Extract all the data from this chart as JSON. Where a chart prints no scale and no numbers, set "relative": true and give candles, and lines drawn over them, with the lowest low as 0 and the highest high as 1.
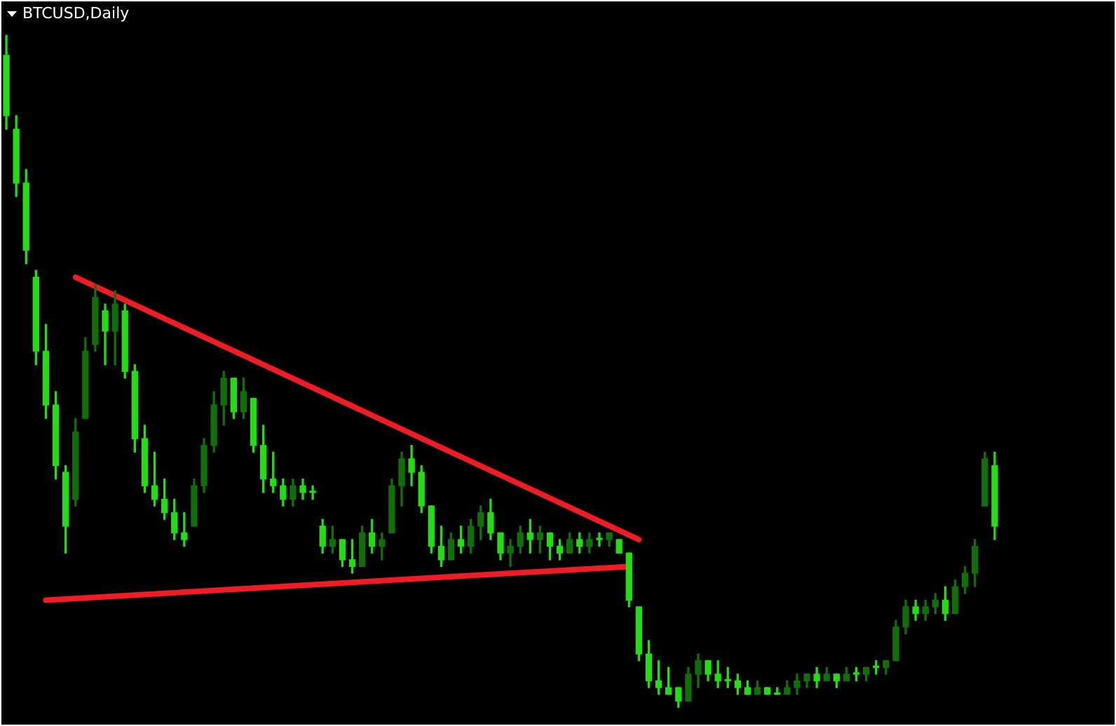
{
  "chart_data": {
    "type": "candlestick",
    "title": "BTCUSD,Daily",
    "relative": true,
    "colors": [
      "#22dd11",
      "#22dd11",
      "#22dd11",
      "#22dd11",
      "#22dd11",
      "#22dd11",
      "#22dd11",
      "#116f09",
      "#116f09",
      "#116f09",
      "#22dd11",
      "#116f09",
      "#22dd11",
      "#22dd11",
      "#22dd11",
      "#22dd11",
      "#22dd11",
      "#22dd11",
      "#22dd11",
      "#116f09",
      "#116f09",
      "#116f09",
      "#116f09",
      "#22dd11",
      "#116f09",
      "#22dd11",
      "#22dd11",
      "#22dd11",
      "#22dd11",
      "#116f09",
      "#22dd11",
      "#22dd11",
      "#22dd11",
      "#116f09",
      "#22dd11",
      "#22dd11",
      "#116f09",
      "#22dd11",
      "#116f09",
      "#116f09",
      "#116f09",
      "#22dd11",
      "#22dd11",
      "#22dd11",
      "#22dd11",
      "#116f09",
      "#22dd11",
      "#116f09",
      "#116f09",
      "#22dd11",
      "#22dd11",
      "#116f09",
      "#116f09",
      "#22dd11",
      "#116f09",
      "#22dd11",
      "#22dd11",
      "#116f09",
      "#22dd11",
      "#116f09",
      "#22dd11",
      "#116f09",
      "#22dd11",
      "#22dd11",
      "#22dd11",
      "#22dd11",
      "#22dd11",
      "#22dd11",
      "#22dd11",
      "#116f09",
      "#116f09",
      "#22dd11",
      "#22dd11",
      "#22dd11",
      "#22dd11",
      "#22dd11",
      "#116f09",
      "#22dd11",
      "#22dd11",
      "#116f09",
      "#116f09",
      "#116f09",
      "#22dd11",
      "#116f09",
      "#22dd11",
      "#116f09",
      "#22dd11",
      "#116f09",
      "#22dd11",
      "#116f09",
      "#116f09",
      "#116f09",
      "#22dd11",
      "#116f09",
      "#116f09",
      "#22dd11",
      "#116f09",
      "#116f09",
      "#116f09",
      "#116f09",
      "#22dd11"
    ],
    "legend": false,
    "tick_labels": false,
    "categories": [
      null,
      null,
      null,
      null,
      null,
      null,
      null,
      null,
      null,
      null,
      null,
      null,
      null,
      null,
      null,
      null,
      null,
      null,
      null,
      null,
      null,
      null,
      null,
      null,
      null,
      null,
      null,
      null,
      null,
      null,
      null,
      null,
      null,
      null,
      null,
      null,
      null,
      null,
      null,
      null,
      null,
      null,
      null,
      null,
      null,
      null,
      null,
      null,
      null,
      null,
      null,
      null,
      null,
      null,
      null,
      null,
      null,
      null,
      null,
      null,
      null,
      null,
      null,
      null,
      null,
      null,
      null,
      null,
      null,
      null,
      null,
      null,
      null,
      null,
      null,
      null,
      null,
      null,
      null,
      null,
      null,
      null,
      null,
      null,
      null,
      null,
      null,
      null,
      null,
      null,
      null,
      null,
      null,
      null,
      null,
      null,
      null,
      null,
      null,
      null,
      null
    ],
    "ohlc": [
      [
        0.97,
        1.0,
        0.86,
        0.88
      ],
      [
        0.86,
        0.88,
        0.76,
        0.78
      ],
      [
        0.78,
        0.8,
        0.66,
        0.68
      ],
      [
        0.64,
        0.65,
        0.51,
        0.53
      ],
      [
        0.53,
        0.57,
        0.43,
        0.45
      ],
      [
        0.45,
        0.47,
        0.34,
        0.36
      ],
      [
        0.35,
        0.36,
        0.23,
        0.27
      ],
      [
        0.31,
        0.43,
        0.3,
        0.41
      ],
      [
        0.43,
        0.55,
        0.43,
        0.53
      ],
      [
        0.54,
        0.63,
        0.53,
        0.61
      ],
      [
        0.59,
        0.6,
        0.51,
        0.56
      ],
      [
        0.56,
        0.62,
        0.51,
        0.6
      ],
      [
        0.59,
        0.6,
        0.49,
        0.5
      ],
      [
        0.5,
        0.51,
        0.38,
        0.4
      ],
      [
        0.4,
        0.42,
        0.32,
        0.33
      ],
      [
        0.33,
        0.38,
        0.3,
        0.31
      ],
      [
        0.31,
        0.34,
        0.28,
        0.29
      ],
      [
        0.29,
        0.31,
        0.25,
        0.26
      ],
      [
        0.26,
        0.29,
        0.24,
        0.25
      ],
      [
        0.27,
        0.34,
        0.27,
        0.33
      ],
      [
        0.33,
        0.4,
        0.32,
        0.39
      ],
      [
        0.39,
        0.47,
        0.38,
        0.45
      ],
      [
        0.45,
        0.5,
        0.42,
        0.49
      ],
      [
        0.49,
        0.49,
        0.43,
        0.44
      ],
      [
        0.44,
        0.49,
        0.43,
        0.47
      ],
      [
        0.46,
        0.46,
        0.38,
        0.39
      ],
      [
        0.39,
        0.42,
        0.32,
        0.34
      ],
      [
        0.34,
        0.38,
        0.32,
        0.33
      ],
      [
        0.33,
        0.34,
        0.3,
        0.31
      ],
      [
        0.31,
        0.34,
        0.3,
        0.33
      ],
      [
        0.33,
        0.34,
        0.31,
        0.32
      ],
      [
        0.32,
        0.33,
        0.31,
        0.32
      ],
      [
        0.27,
        0.28,
        0.23,
        0.24
      ],
      [
        0.24,
        0.27,
        0.23,
        0.25
      ],
      [
        0.25,
        0.25,
        0.21,
        0.22
      ],
      [
        0.22,
        0.25,
        0.2,
        0.21
      ],
      [
        0.21,
        0.27,
        0.21,
        0.26
      ],
      [
        0.26,
        0.28,
        0.23,
        0.24
      ],
      [
        0.24,
        0.26,
        0.22,
        0.25
      ],
      [
        0.26,
        0.34,
        0.26,
        0.33
      ],
      [
        0.33,
        0.38,
        0.3,
        0.37
      ],
      [
        0.37,
        0.39,
        0.33,
        0.35
      ],
      [
        0.35,
        0.36,
        0.29,
        0.3
      ],
      [
        0.3,
        0.3,
        0.23,
        0.24
      ],
      [
        0.24,
        0.27,
        0.21,
        0.22
      ],
      [
        0.22,
        0.26,
        0.22,
        0.25
      ],
      [
        0.25,
        0.27,
        0.23,
        0.24
      ],
      [
        0.24,
        0.28,
        0.23,
        0.27
      ],
      [
        0.27,
        0.3,
        0.25,
        0.29
      ],
      [
        0.29,
        0.31,
        0.25,
        0.26
      ],
      [
        0.26,
        0.26,
        0.22,
        0.23
      ],
      [
        0.23,
        0.25,
        0.21,
        0.24
      ],
      [
        0.24,
        0.27,
        0.23,
        0.26
      ],
      [
        0.26,
        0.28,
        0.23,
        0.25
      ],
      [
        0.25,
        0.27,
        0.23,
        0.26
      ],
      [
        0.26,
        0.26,
        0.22,
        0.24
      ],
      [
        0.24,
        0.25,
        0.22,
        0.23
      ],
      [
        0.23,
        0.26,
        0.23,
        0.25
      ],
      [
        0.25,
        0.26,
        0.23,
        0.24
      ],
      [
        0.24,
        0.26,
        0.23,
        0.25
      ],
      [
        0.25,
        0.26,
        0.24,
        0.25
      ],
      [
        0.25,
        0.26,
        0.24,
        0.26
      ],
      [
        0.25,
        0.25,
        0.23,
        0.23
      ],
      [
        0.23,
        0.23,
        0.15,
        0.16
      ],
      [
        0.15,
        0.15,
        0.07,
        0.08
      ],
      [
        0.08,
        0.1,
        0.03,
        0.04
      ],
      [
        0.04,
        0.07,
        0.02,
        0.03
      ],
      [
        0.03,
        0.06,
        0.02,
        0.02
      ],
      [
        0.03,
        0.03,
        0.0,
        0.01
      ],
      [
        0.01,
        0.06,
        0.01,
        0.05
      ],
      [
        0.05,
        0.08,
        0.03,
        0.07
      ],
      [
        0.07,
        0.07,
        0.04,
        0.05
      ],
      [
        0.05,
        0.07,
        0.03,
        0.04
      ],
      [
        0.04,
        0.06,
        0.03,
        0.04
      ],
      [
        0.04,
        0.05,
        0.02,
        0.03
      ],
      [
        0.03,
        0.04,
        0.02,
        0.02
      ],
      [
        0.02,
        0.04,
        0.02,
        0.03
      ],
      [
        0.03,
        0.03,
        0.02,
        0.02
      ],
      [
        0.02,
        0.03,
        0.02,
        0.02
      ],
      [
        0.02,
        0.04,
        0.02,
        0.03
      ],
      [
        0.03,
        0.05,
        0.02,
        0.04
      ],
      [
        0.04,
        0.05,
        0.03,
        0.05
      ],
      [
        0.05,
        0.06,
        0.03,
        0.04
      ],
      [
        0.04,
        0.06,
        0.04,
        0.05
      ],
      [
        0.05,
        0.05,
        0.03,
        0.04
      ],
      [
        0.04,
        0.06,
        0.04,
        0.05
      ],
      [
        0.05,
        0.06,
        0.04,
        0.05
      ],
      [
        0.05,
        0.06,
        0.04,
        0.06
      ],
      [
        0.06,
        0.07,
        0.05,
        0.06
      ],
      [
        0.06,
        0.07,
        0.05,
        0.07
      ],
      [
        0.07,
        0.13,
        0.07,
        0.12
      ],
      [
        0.12,
        0.16,
        0.11,
        0.15
      ],
      [
        0.15,
        0.16,
        0.13,
        0.14
      ],
      [
        0.14,
        0.16,
        0.13,
        0.15
      ],
      [
        0.15,
        0.17,
        0.14,
        0.16
      ],
      [
        0.16,
        0.18,
        0.13,
        0.14
      ],
      [
        0.14,
        0.19,
        0.14,
        0.18
      ],
      [
        0.18,
        0.21,
        0.17,
        0.2
      ],
      [
        0.2,
        0.25,
        0.18,
        0.24
      ],
      [
        0.3,
        0.38,
        0.3,
        0.37
      ],
      [
        0.36,
        0.38,
        0.25,
        0.27
      ]
    ],
    "series": [
      {
        "type": "line",
        "color": "#ee1c24",
        "values": [
          null,
          null,
          null,
          null,
          null,
          null,
          null,
          0.64,
          null,
          null,
          null,
          null,
          null,
          null,
          null,
          null,
          null,
          null,
          null,
          null,
          null,
          null,
          null,
          null,
          null,
          null,
          null,
          null,
          null,
          null,
          null,
          null,
          null,
          null,
          null,
          null,
          null,
          null,
          null,
          null,
          null,
          null,
          null,
          null,
          null,
          null,
          null,
          null,
          null,
          null,
          null,
          null,
          null,
          null,
          null,
          null,
          null,
          null,
          null,
          null,
          null,
          null,
          null,
          null,
          0.25,
          null,
          null,
          null,
          null,
          null,
          null,
          null,
          null,
          null,
          null,
          null,
          null,
          null,
          null,
          null,
          null,
          null,
          null,
          null,
          null,
          null,
          null,
          null,
          null,
          null,
          null,
          null,
          null,
          null,
          null,
          null,
          null,
          null,
          null,
          null,
          null
        ]
      },
      {
        "type": "line",
        "color": "#ee1c24",
        "values": [
          null,
          null,
          null,
          null,
          0.16,
          null,
          null,
          null,
          null,
          null,
          null,
          null,
          null,
          null,
          null,
          null,
          null,
          null,
          null,
          null,
          null,
          null,
          null,
          null,
          null,
          null,
          null,
          null,
          null,
          null,
          null,
          null,
          null,
          null,
          null,
          null,
          null,
          null,
          null,
          null,
          null,
          null,
          null,
          null,
          null,
          null,
          null,
          null,
          null,
          null,
          null,
          null,
          null,
          null,
          null,
          null,
          null,
          null,
          null,
          null,
          null,
          null,
          null,
          0.21,
          null,
          null,
          null,
          null,
          null,
          null,
          null,
          null,
          null,
          null,
          null,
          null,
          null,
          null,
          null,
          null,
          null,
          null,
          null,
          null,
          null,
          null,
          null,
          null,
          null,
          null,
          null,
          null,
          null,
          null,
          null,
          null,
          null,
          null,
          null,
          null,
          null
        ]
      }
    ]
  }
}
